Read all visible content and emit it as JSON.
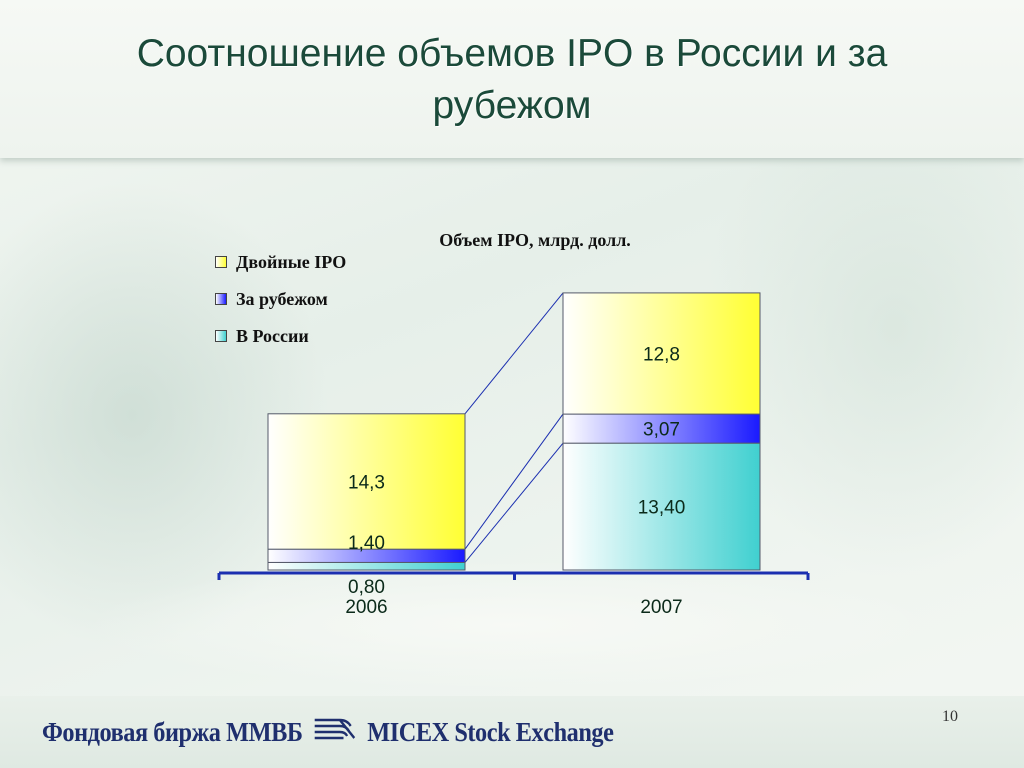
{
  "slide": {
    "title_line1": "Соотношение объемов IPO в России и за",
    "title_line2": "рубежом",
    "page_number": "10"
  },
  "footer": {
    "logo_left": "Фондовая биржа ММВБ",
    "logo_right": "MICEX Stock Exchange",
    "logo_mark_icon": "micex-logo-icon"
  },
  "chart_data": {
    "type": "bar",
    "stacked": true,
    "title": "Объем IPO, млрд. долл.",
    "categories": [
      "2006",
      "2007"
    ],
    "series": [
      {
        "name": "В России",
        "values": [
          0.8,
          13.4
        ],
        "labels": [
          "0,80",
          "13,40"
        ],
        "color": "#40d0d0"
      },
      {
        "name": "За рубежом",
        "values": [
          1.4,
          3.07
        ],
        "labels": [
          "1,40",
          "3,07"
        ],
        "color": "#1a1aff"
      },
      {
        "name": "Двойные IPO",
        "values": [
          14.3,
          12.8
        ],
        "labels": [
          "14,3",
          "12,8"
        ],
        "color": "#ffff33"
      }
    ],
    "legend_order": [
      "Двойные IPO",
      "За рубежом",
      "В России"
    ],
    "legend_position": "top-left",
    "ylim": [
      0,
      30
    ],
    "grid": false,
    "series_lines": true
  },
  "colors": {
    "title": "#1b4a3a",
    "axis": "#1b2fb0",
    "label_text": "#0b2a1a"
  }
}
